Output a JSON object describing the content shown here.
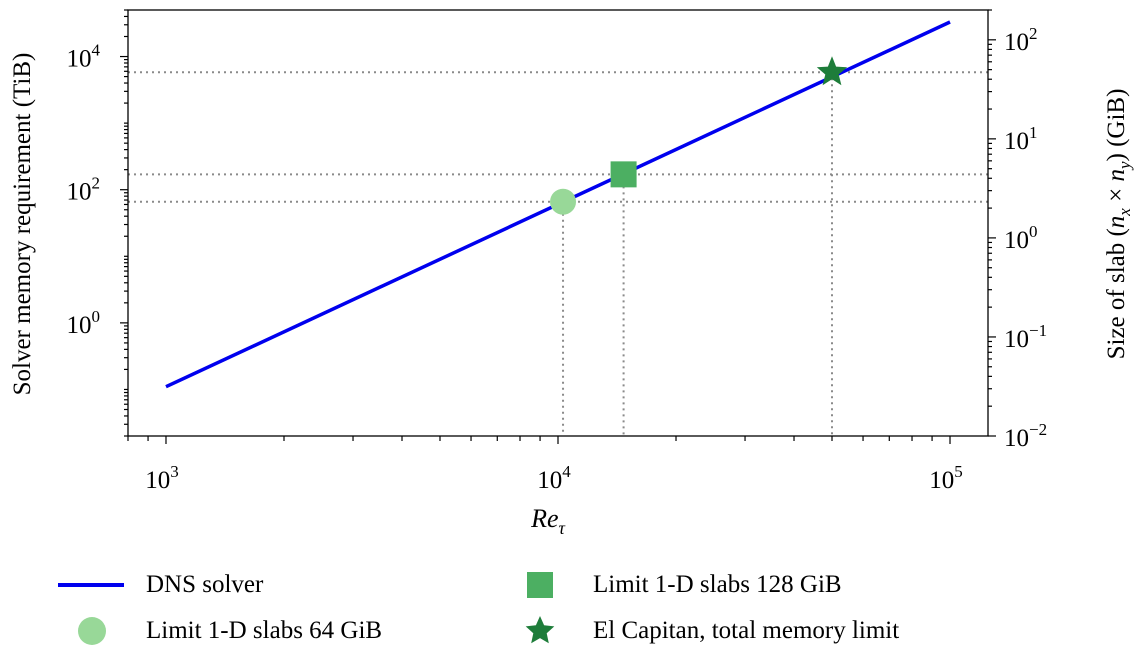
{
  "chart_data": {
    "type": "line",
    "x_scale": "log",
    "y_scale": "log",
    "xlim": [
      800,
      125000
    ],
    "ylim_left": [
      0.02,
      50000
    ],
    "ylim_right": [
      0.01,
      200
    ],
    "xlabel": "Re_τ",
    "ylabel_left": "Solver memory requirement (TiB)",
    "ylabel_right_prefix": "Size of slab (",
    "ylabel_right_math": "n_x × n_y",
    "ylabel_right_suffix": ") (GiB)",
    "x_ticks": [
      {
        "value": 1000,
        "base": "10",
        "exp": "3"
      },
      {
        "value": 10000,
        "base": "10",
        "exp": "4"
      },
      {
        "value": 100000,
        "base": "10",
        "exp": "5"
      }
    ],
    "y_left_ticks": [
      {
        "value": 1,
        "base": "10",
        "exp": "0"
      },
      {
        "value": 100,
        "base": "10",
        "exp": "2"
      },
      {
        "value": 10000,
        "base": "10",
        "exp": "4"
      }
    ],
    "y_right_ticks": [
      {
        "value": 0.01,
        "base": "10",
        "exp": "−2"
      },
      {
        "value": 0.1,
        "base": "10",
        "exp": "−1"
      },
      {
        "value": 1,
        "base": "10",
        "exp": "0"
      },
      {
        "value": 10,
        "base": "10",
        "exp": "1"
      },
      {
        "value": 100,
        "base": "10",
        "exp": "2"
      }
    ],
    "series": [
      {
        "name": "DNS solver",
        "color": "#0000ee",
        "x": [
          1000,
          100000
        ],
        "y": [
          0.11,
          33000
        ]
      }
    ],
    "markers": [
      {
        "name": "Limit 1-D slabs 64 GiB",
        "shape": "circle",
        "color": "#98d898",
        "x": 10300,
        "y": 66
      },
      {
        "name": "Limit 1-D slabs 128 GiB",
        "shape": "square",
        "color": "#4caf62",
        "x": 14700,
        "y": 170
      },
      {
        "name": "El Capitan, total memory limit",
        "shape": "star",
        "color": "#1e7d3a",
        "x": 50000,
        "y": 5800
      }
    ],
    "grid": false,
    "guide_lines": "dotted gray lines from each marker to left and right axes and down to x-axis",
    "legend_placement": "bottom"
  },
  "legend": {
    "dns": "DNS solver",
    "slab64": "Limit 1-D slabs 64 GiB",
    "slab128": "Limit 1-D slabs 128 GiB",
    "elcap": "El Capitan, total memory limit"
  }
}
